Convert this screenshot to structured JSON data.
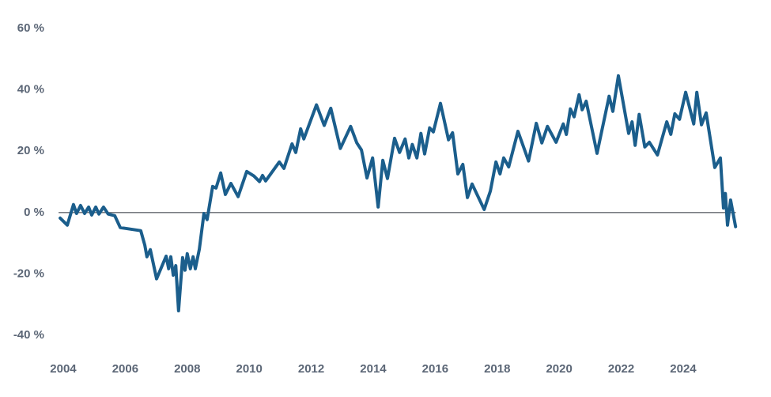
{
  "chart_data": {
    "type": "line",
    "x": [
      2003.9,
      2004.13,
      2004.33,
      2004.43,
      2004.56,
      2004.69,
      2004.82,
      2004.92,
      2005.05,
      2005.15,
      2005.3,
      2005.45,
      2005.66,
      2005.84,
      2006.5,
      2006.63,
      2006.7,
      2006.81,
      2007.01,
      2007.32,
      2007.4,
      2007.47,
      2007.55,
      2007.63,
      2007.72,
      2007.85,
      2007.93,
      2008.0,
      2008.1,
      2008.19,
      2008.26,
      2008.39,
      2008.54,
      2008.64,
      2008.82,
      2008.93,
      2009.08,
      2009.23,
      2009.41,
      2009.64,
      2009.92,
      2010.15,
      2010.33,
      2010.43,
      2010.53,
      2010.97,
      2011.12,
      2011.38,
      2011.5,
      2011.66,
      2011.76,
      2012.17,
      2012.42,
      2012.63,
      2012.94,
      2013.27,
      2013.47,
      2013.62,
      2013.8,
      2013.98,
      2014.16,
      2014.31,
      2014.46,
      2014.69,
      2014.85,
      2015.03,
      2015.15,
      2015.26,
      2015.41,
      2015.54,
      2015.66,
      2015.82,
      2015.94,
      2016.17,
      2016.43,
      2016.56,
      2016.73,
      2016.89,
      2017.04,
      2017.19,
      2017.58,
      2017.78,
      2017.96,
      2018.09,
      2018.21,
      2018.37,
      2018.67,
      2019.01,
      2019.26,
      2019.44,
      2019.62,
      2019.9,
      2020.13,
      2020.23,
      2020.36,
      2020.48,
      2020.64,
      2020.74,
      2020.87,
      2021.22,
      2021.61,
      2021.73,
      2021.91,
      2022.24,
      2022.35,
      2022.45,
      2022.58,
      2022.76,
      2022.91,
      2023.17,
      2023.47,
      2023.6,
      2023.73,
      2023.88,
      2024.08,
      2024.34,
      2024.44,
      2024.59,
      2024.74,
      2025.02,
      2025.2,
      2025.3,
      2025.36,
      2025.43,
      2025.53,
      2025.69
    ],
    "series": [
      {
        "color": "#1b5e8c",
        "values": [
          -1.8,
          -4.1,
          2.6,
          -0.3,
          2.3,
          -0.3,
          1.8,
          -0.8,
          1.8,
          -0.5,
          1.8,
          -0.5,
          -1.0,
          -4.9,
          -5.9,
          -10.6,
          -14.4,
          -12.1,
          -21.6,
          -14.2,
          -18.3,
          -14.4,
          -20.4,
          -17.3,
          -32.0,
          -14.7,
          -18.8,
          -13.4,
          -18.3,
          -14.4,
          -18.3,
          -11.9,
          -0.3,
          -2.3,
          8.5,
          8.0,
          12.9,
          5.9,
          9.5,
          5.2,
          13.4,
          11.9,
          10.1,
          12.1,
          10.3,
          16.5,
          14.4,
          22.4,
          19.6,
          27.3,
          24.0,
          35.1,
          28.4,
          34.0,
          20.9,
          28.1,
          22.7,
          20.4,
          11.3,
          17.8,
          1.8,
          17.0,
          11.1,
          24.2,
          19.6,
          24.0,
          17.8,
          22.2,
          17.8,
          25.8,
          19.1,
          27.6,
          26.3,
          35.6,
          23.7,
          26.0,
          12.6,
          15.7,
          4.9,
          9.3,
          1.0,
          7.0,
          16.5,
          12.6,
          17.8,
          14.9,
          26.5,
          16.8,
          29.1,
          22.7,
          28.1,
          22.9,
          28.9,
          25.5,
          33.8,
          31.2,
          38.4,
          33.5,
          36.3,
          19.3,
          37.9,
          33.0,
          44.6,
          25.8,
          29.6,
          21.9,
          32.0,
          21.4,
          22.9,
          18.8,
          29.6,
          25.5,
          32.2,
          30.4,
          39.2,
          28.9,
          39.2,
          28.6,
          32.5,
          14.7,
          17.8,
          1.5,
          6.2,
          -4.1,
          4.1,
          -4.6
        ]
      }
    ],
    "xlim": [
      2003.85,
      2025.7
    ],
    "xticks": [
      2004,
      2006,
      2008,
      2010,
      2012,
      2014,
      2016,
      2018,
      2020,
      2022,
      2024
    ],
    "ylim": [
      -40,
      60
    ],
    "yticks": [
      {
        "value": -40,
        "label": "-40 %"
      },
      {
        "value": -20,
        "label": "-20 %"
      },
      {
        "value": 0,
        "label": "0 %"
      },
      {
        "value": 20,
        "label": "20 %"
      },
      {
        "value": 40,
        "label": "40 %"
      },
      {
        "value": 60,
        "label": "60 %"
      }
    ]
  }
}
